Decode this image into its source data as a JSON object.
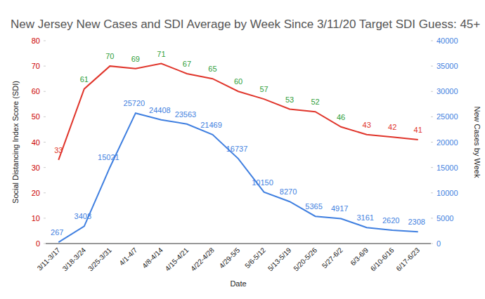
{
  "chart_data": {
    "type": "line",
    "title": "New Jersey New Cases and SDI Average by Week Since 3/11/20 Target SDI Guess: 45+",
    "x_label": "Date",
    "y_label": "Social Distancing Index Score (SDI)",
    "y2_label": "New Cases by Week",
    "categories": [
      "3/11-3/17",
      "3/18-3/24",
      "3/25-3/31",
      "4/1-4/7",
      "4/8-4/14",
      "4/15-4/21",
      "4/22-4/28",
      "4/29-5/5",
      "5/6-5/12",
      "5/13-5/19",
      "5/20-5/26",
      "5/27-6/2",
      "6/3-6/9",
      "6/10-6/16",
      "6/17-6/23"
    ],
    "series": [
      {
        "name": "SDI",
        "color": "#e0352b",
        "colors": [
          "#e0352b",
          "#2e9e3a",
          "#2e9e3a",
          "#2e9e3a",
          "#2e9e3a",
          "#2e9e3a",
          "#2e9e3a",
          "#2e9e3a",
          "#2e9e3a",
          "#2e9e3a",
          "#2e9e3a",
          "#2e9e3a",
          "#e0352b",
          "#e0352b",
          "#e0352b"
        ],
        "values": [
          33,
          61,
          70,
          69,
          71,
          67,
          65,
          60,
          57,
          53,
          52,
          46,
          43,
          42,
          41
        ]
      },
      {
        "name": "New Cases",
        "color": "#3f7fe0",
        "axis": "y2",
        "values": [
          267,
          3408,
          15021,
          25720,
          24408,
          23563,
          21469,
          16737,
          10150,
          8270,
          5365,
          4917,
          3161,
          2620,
          2308
        ]
      }
    ],
    "ylim": [
      0,
      80
    ],
    "yticks": [
      0,
      10,
      20,
      30,
      40,
      50,
      60,
      70,
      80
    ],
    "y2lim": [
      0,
      40000
    ],
    "y2ticks": [
      0,
      5000,
      10000,
      15000,
      20000,
      25000,
      30000,
      35000,
      40000
    ],
    "grid": false,
    "data_labels": true
  }
}
